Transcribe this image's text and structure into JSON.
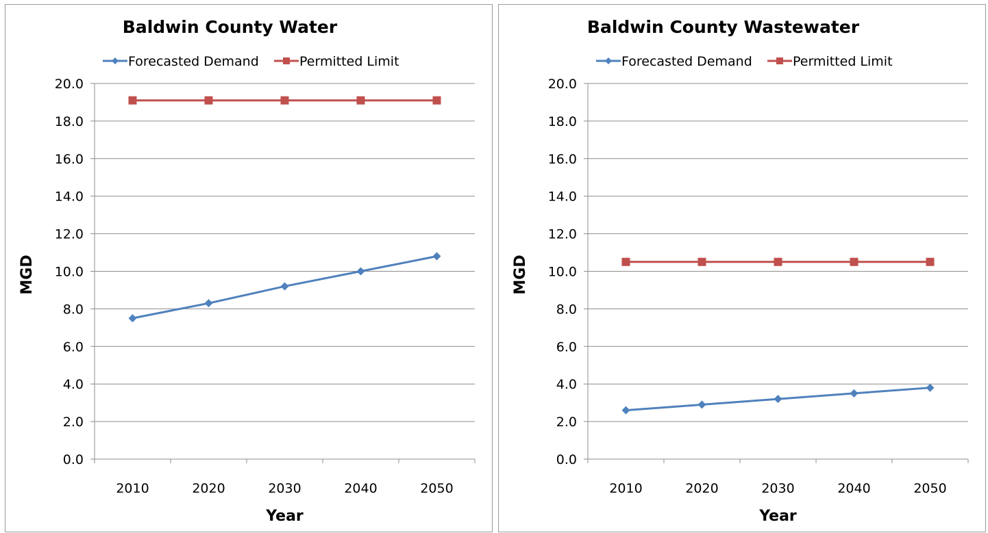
{
  "chart_data": [
    {
      "type": "line",
      "title": "Baldwin County Water",
      "xlabel": "Year",
      "ylabel": "MGD",
      "categories": [
        "2010",
        "2020",
        "2030",
        "2040",
        "2050"
      ],
      "ylim": [
        0,
        20
      ],
      "yticks": [
        "0.0",
        "2.0",
        "4.0",
        "6.0",
        "8.0",
        "10.0",
        "12.0",
        "14.0",
        "16.0",
        "18.0",
        "20.0"
      ],
      "grid": "horizontal",
      "legend_position": "top",
      "series": [
        {
          "name": "Forecasted Demand",
          "color": "#4f81bd",
          "marker": "diamond",
          "values": [
            7.5,
            8.3,
            9.2,
            10.0,
            10.8
          ]
        },
        {
          "name": "Permitted Limit",
          "color": "#c0504d",
          "marker": "square",
          "values": [
            19.1,
            19.1,
            19.1,
            19.1,
            19.1
          ]
        }
      ]
    },
    {
      "type": "line",
      "title": "Baldwin County Wastewater",
      "xlabel": "Year",
      "ylabel": "MGD",
      "categories": [
        "2010",
        "2020",
        "2030",
        "2040",
        "2050"
      ],
      "ylim": [
        0,
        20
      ],
      "yticks": [
        "0.0",
        "2.0",
        "4.0",
        "6.0",
        "8.0",
        "10.0",
        "12.0",
        "14.0",
        "16.0",
        "18.0",
        "20.0"
      ],
      "grid": "horizontal",
      "legend_position": "top",
      "series": [
        {
          "name": "Forecasted Demand",
          "color": "#4f81bd",
          "marker": "diamond",
          "values": [
            2.6,
            2.9,
            3.2,
            3.5,
            3.8
          ]
        },
        {
          "name": "Permitted Limit",
          "color": "#c0504d",
          "marker": "square",
          "values": [
            10.5,
            10.5,
            10.5,
            10.5,
            10.5
          ]
        }
      ]
    }
  ]
}
